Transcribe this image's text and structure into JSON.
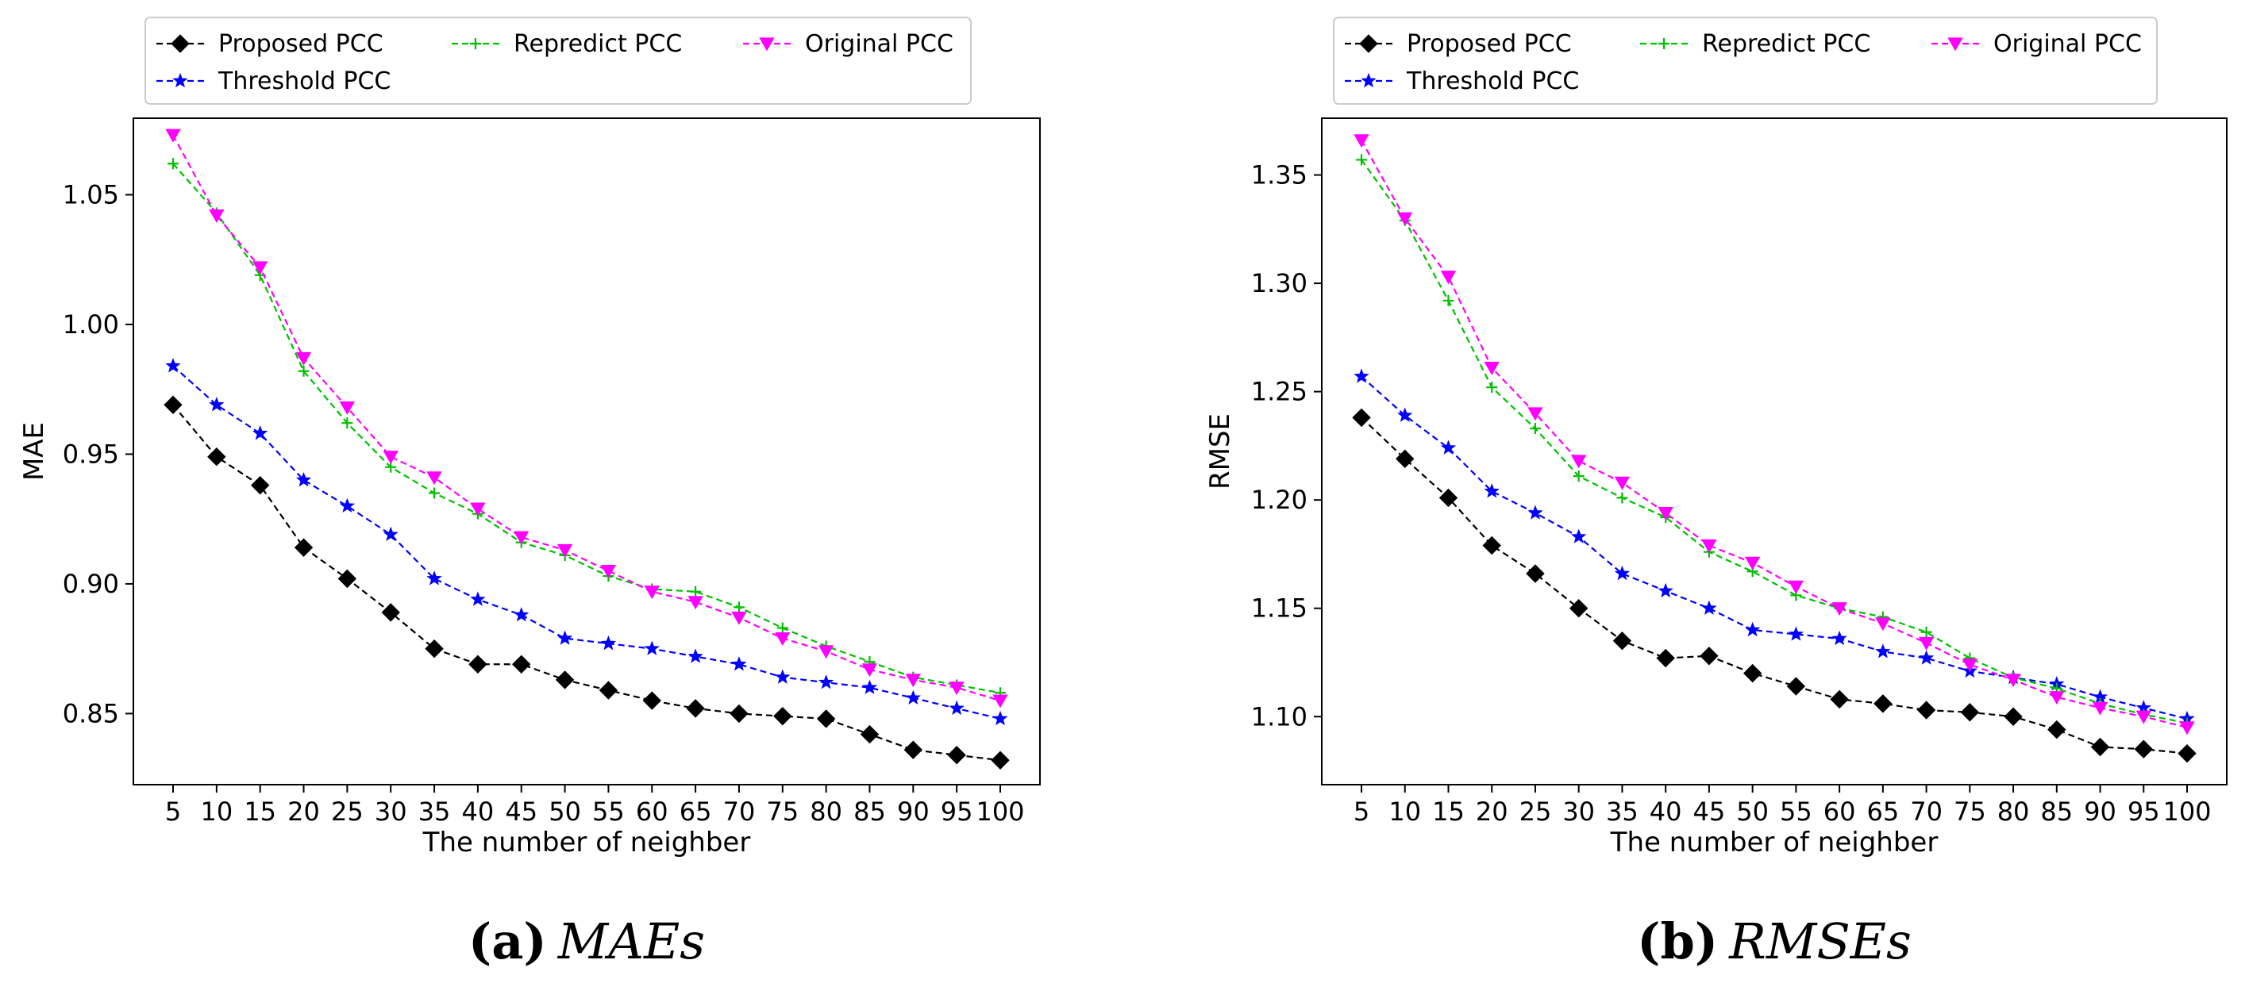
{
  "chart_data": [
    {
      "type": "line",
      "caption_tag": "(a)",
      "caption_title": "MAEs",
      "xlabel": "The number of neighber",
      "ylabel": "MAE",
      "x": [
        5,
        10,
        15,
        20,
        25,
        30,
        35,
        40,
        45,
        50,
        55,
        60,
        65,
        70,
        75,
        80,
        85,
        90,
        95,
        100
      ],
      "x_tick_labels": [
        "5",
        "10",
        "15",
        "20",
        "25",
        "30",
        "35",
        "40",
        "45",
        "50",
        "55",
        "60",
        "65",
        "70",
        "75",
        "80",
        "85",
        "90",
        "95",
        "100"
      ],
      "yticks": [
        0.85,
        0.9,
        0.95,
        1.0,
        1.05
      ],
      "ytick_labels": [
        "0.85",
        "0.90",
        "0.95",
        "1.00",
        "1.05"
      ],
      "ylim": [
        0.8226,
        1.0795
      ],
      "legend_position": "top",
      "series": [
        {
          "name": "Proposed PCC",
          "color": "#000000",
          "marker": "diamond",
          "values": [
            0.969,
            0.949,
            0.938,
            0.914,
            0.902,
            0.889,
            0.875,
            0.869,
            0.869,
            0.863,
            0.859,
            0.855,
            0.852,
            0.85,
            0.849,
            0.848,
            0.842,
            0.836,
            0.834,
            0.832
          ]
        },
        {
          "name": "Threshold PCC",
          "color": "#0000ff",
          "marker": "star",
          "values": [
            0.984,
            0.969,
            0.958,
            0.94,
            0.93,
            0.919,
            0.902,
            0.894,
            0.888,
            0.879,
            0.877,
            0.875,
            0.872,
            0.869,
            0.864,
            0.862,
            0.86,
            0.856,
            0.852,
            0.848
          ]
        },
        {
          "name": "Repredict PCC",
          "color": "#00c000",
          "marker": "plus",
          "values": [
            1.062,
            1.043,
            1.019,
            0.982,
            0.962,
            0.945,
            0.935,
            0.927,
            0.916,
            0.911,
            0.903,
            0.898,
            0.897,
            0.891,
            0.883,
            0.876,
            0.87,
            0.864,
            0.861,
            0.858
          ]
        },
        {
          "name": "Original PCC",
          "color": "#ff00ff",
          "marker": "triangle-down",
          "values": [
            1.073,
            1.042,
            1.022,
            0.987,
            0.968,
            0.949,
            0.941,
            0.929,
            0.918,
            0.913,
            0.905,
            0.897,
            0.893,
            0.887,
            0.879,
            0.874,
            0.867,
            0.863,
            0.86,
            0.855
          ]
        }
      ]
    },
    {
      "type": "line",
      "caption_tag": "(b)",
      "caption_title": "RMSEs",
      "xlabel": "The number of neighber",
      "ylabel": "RMSE",
      "x": [
        5,
        10,
        15,
        20,
        25,
        30,
        35,
        40,
        45,
        50,
        55,
        60,
        65,
        70,
        75,
        80,
        85,
        90,
        95,
        100
      ],
      "x_tick_labels": [
        "5",
        "10",
        "15",
        "20",
        "25",
        "30",
        "35",
        "40",
        "45",
        "50",
        "55",
        "60",
        "65",
        "70",
        "75",
        "80",
        "85",
        "90",
        "95",
        "100"
      ],
      "yticks": [
        1.1,
        1.15,
        1.2,
        1.25,
        1.3,
        1.35
      ],
      "ytick_labels": [
        "1.10",
        "1.15",
        "1.20",
        "1.25",
        "1.30",
        "1.35"
      ],
      "ylim": [
        1.0686,
        1.3762
      ],
      "legend_position": "top",
      "series": [
        {
          "name": "Proposed PCC",
          "color": "#000000",
          "marker": "diamond",
          "values": [
            1.238,
            1.219,
            1.201,
            1.179,
            1.166,
            1.15,
            1.135,
            1.127,
            1.128,
            1.12,
            1.114,
            1.108,
            1.106,
            1.103,
            1.102,
            1.1,
            1.094,
            1.086,
            1.085,
            1.083
          ]
        },
        {
          "name": "Threshold PCC",
          "color": "#0000ff",
          "marker": "star",
          "values": [
            1.257,
            1.239,
            1.224,
            1.204,
            1.194,
            1.183,
            1.166,
            1.158,
            1.15,
            1.14,
            1.138,
            1.136,
            1.13,
            1.127,
            1.121,
            1.118,
            1.115,
            1.109,
            1.104,
            1.099
          ]
        },
        {
          "name": "Repredict PCC",
          "color": "#00c000",
          "marker": "plus",
          "values": [
            1.357,
            1.329,
            1.292,
            1.252,
            1.233,
            1.211,
            1.201,
            1.192,
            1.176,
            1.167,
            1.156,
            1.15,
            1.146,
            1.139,
            1.127,
            1.118,
            1.113,
            1.106,
            1.101,
            1.097
          ]
        },
        {
          "name": "Original PCC",
          "color": "#ff00ff",
          "marker": "triangle-down",
          "values": [
            1.366,
            1.33,
            1.303,
            1.261,
            1.24,
            1.218,
            1.208,
            1.194,
            1.179,
            1.171,
            1.16,
            1.15,
            1.143,
            1.134,
            1.124,
            1.117,
            1.109,
            1.104,
            1.1,
            1.095
          ]
        }
      ]
    }
  ]
}
